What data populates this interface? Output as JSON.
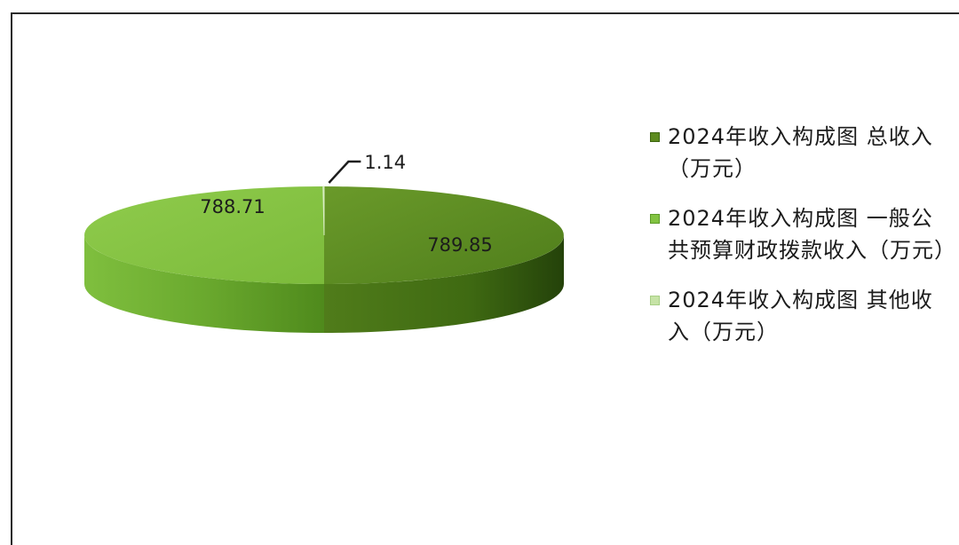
{
  "chart_data": {
    "type": "pie",
    "title": "",
    "slices": [
      {
        "label": "2024年收入构成图 总收入（万元）",
        "value": 789.85,
        "data_label": "789.85",
        "color": "#5c8a1e"
      },
      {
        "label": "2024年收入构成图 一般公共预算财政拨款收入（万元）",
        "value": 788.71,
        "data_label": "788.71",
        "color": "#82c341"
      },
      {
        "label": "2024年收入构成图 其他收入（万元）",
        "value": 1.14,
        "data_label": "1.14",
        "color": "#c6e3a6"
      }
    ],
    "legend_placement": "right",
    "style": "3d"
  }
}
